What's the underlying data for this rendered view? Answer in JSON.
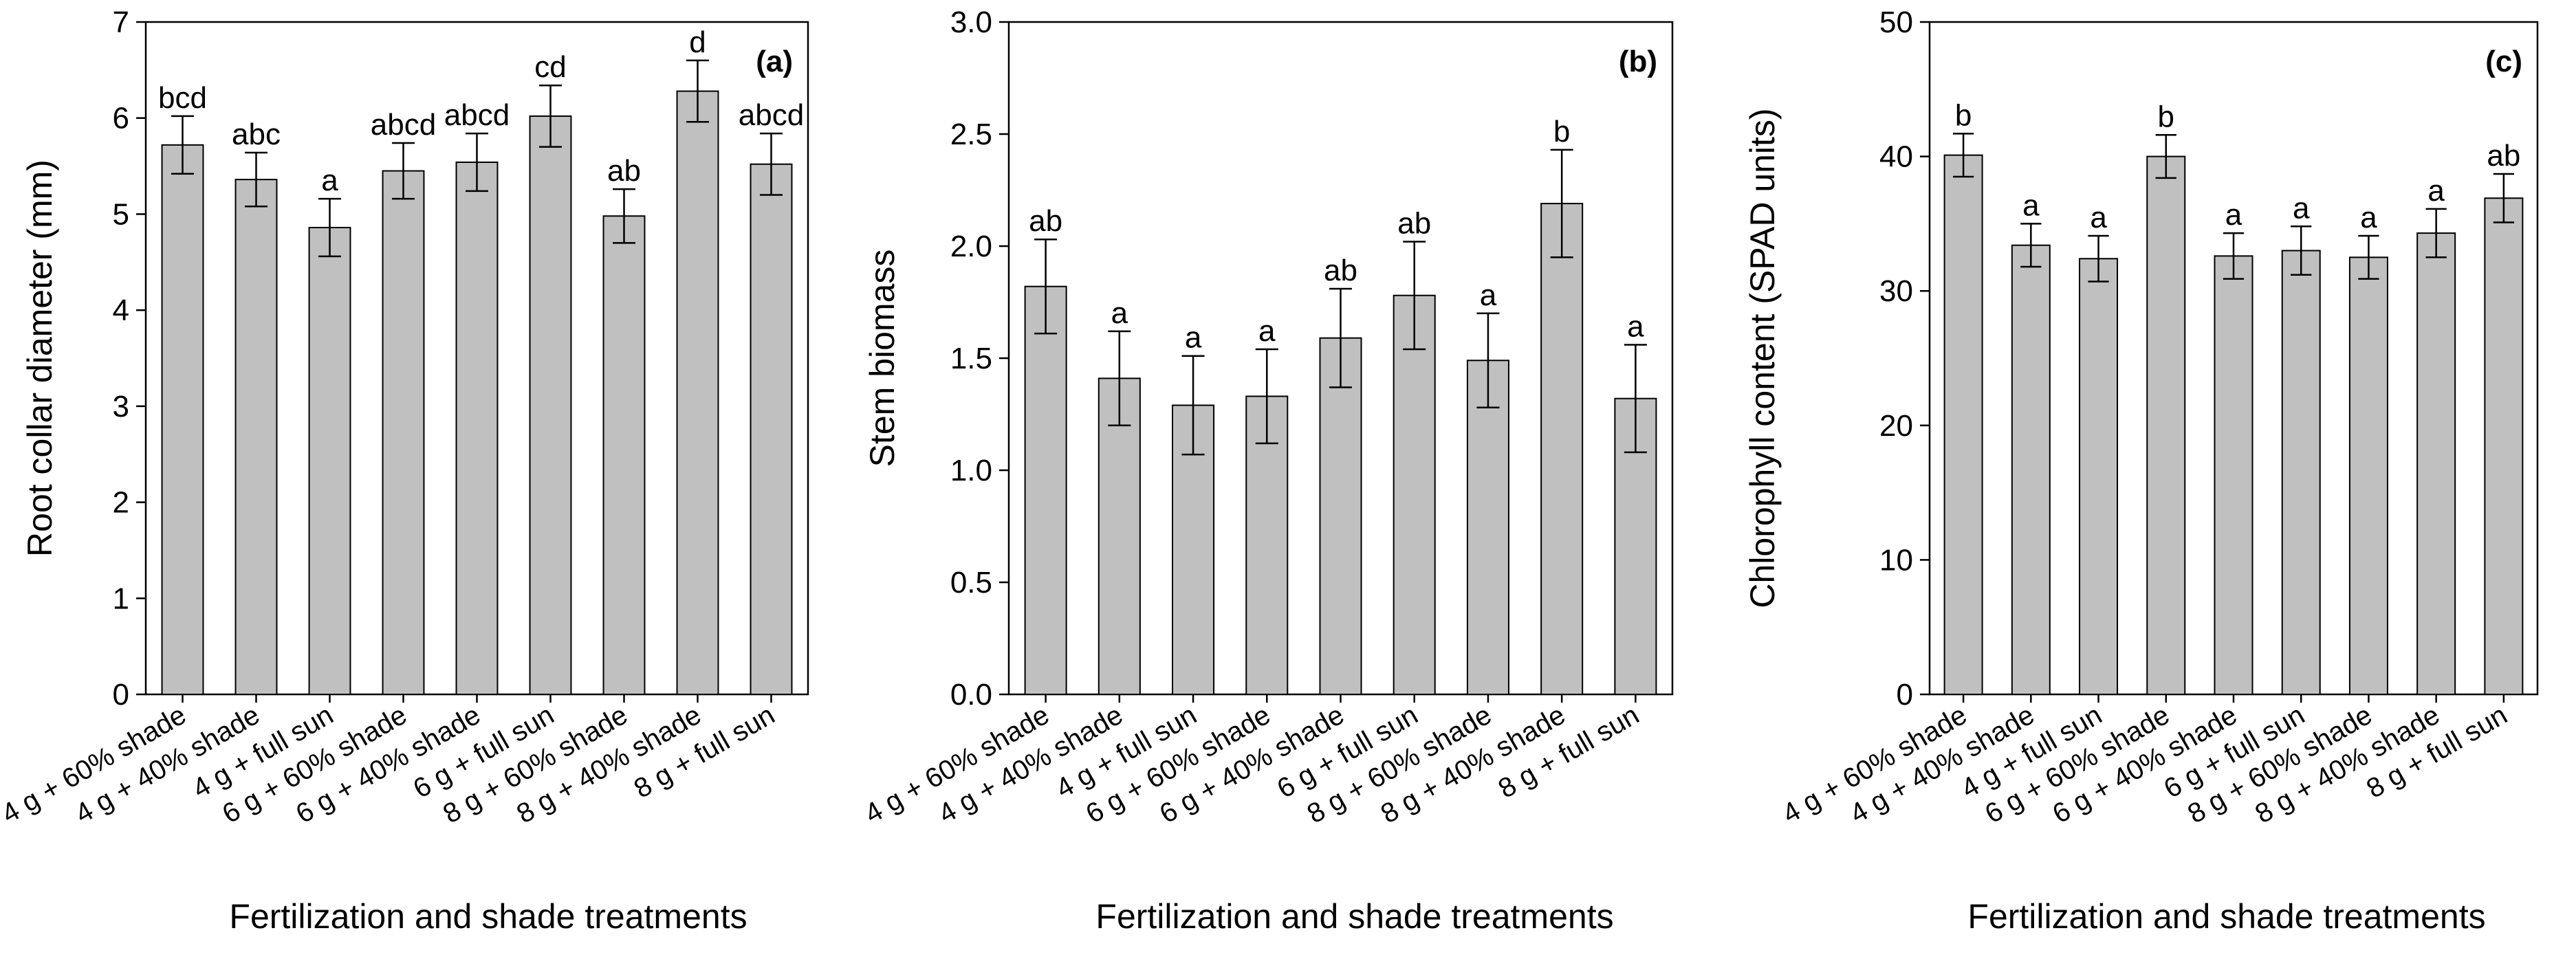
{
  "chart_data": [
    {
      "type": "bar",
      "panel_label": "(a)",
      "title": "",
      "xlabel": "Fertilization and shade treatments",
      "ylabel": "Root collar diameter (mm)",
      "ylim": [
        0,
        7
      ],
      "yticks": [
        "0",
        "1",
        "2",
        "3",
        "4",
        "5",
        "6",
        "7"
      ],
      "categories": [
        "4 g + 60% shade",
        "4 g + 40% shade",
        "4 g + full sun",
        "6 g + 60% shade",
        "6 g + 40% shade",
        "6 g + full sun",
        "8 g + 60% shade",
        "8 g + 40% shade",
        "8 g + full sun"
      ],
      "values": [
        5.72,
        5.36,
        4.86,
        5.45,
        5.54,
        6.02,
        4.98,
        6.28,
        5.52
      ],
      "errors": [
        0.3,
        0.28,
        0.3,
        0.29,
        0.3,
        0.32,
        0.28,
        0.32,
        0.32
      ],
      "letters": [
        "bcd",
        "abc",
        "a",
        "abcd",
        "abcd",
        "cd",
        "ab",
        "d",
        "abcd"
      ]
    },
    {
      "type": "bar",
      "panel_label": "(b)",
      "title": "",
      "xlabel": "Fertilization and shade treatments",
      "ylabel": "Stem biomass",
      "ylim": [
        0,
        3.0
      ],
      "yticks": [
        "0.0",
        "0.5",
        "1.0",
        "1.5",
        "2.0",
        "2.5",
        "3.0"
      ],
      "categories": [
        "4 g + 60% shade",
        "4 g + 40% shade",
        "4 g + full sun",
        "6 g + 60% shade",
        "6 g + 40% shade",
        "6 g + full sun",
        "8 g + 60% shade",
        "8 g + 40% shade",
        "8 g + full sun"
      ],
      "values": [
        1.82,
        1.41,
        1.29,
        1.33,
        1.59,
        1.78,
        1.49,
        2.19,
        1.32
      ],
      "errors": [
        0.21,
        0.21,
        0.22,
        0.21,
        0.22,
        0.24,
        0.21,
        0.24,
        0.24
      ],
      "letters": [
        "ab",
        "a",
        "a",
        "a",
        "ab",
        "ab",
        "a",
        "b",
        "a"
      ]
    },
    {
      "type": "bar",
      "panel_label": "(c)",
      "title": "",
      "xlabel": "Fertilization and shade treatments",
      "ylabel": "Chlorophyll content (SPAD units)",
      "ylim": [
        0,
        50
      ],
      "yticks": [
        "0",
        "10",
        "20",
        "30",
        "40",
        "50"
      ],
      "categories": [
        "4 g + 60% shade",
        "4 g + 40% shade",
        "4 g + full sun",
        "6 g + 60% shade",
        "6 g + 40% shade",
        "6 g + full sun",
        "8 g + 60% shade",
        "8 g + 40% shade",
        "8 g + full sun"
      ],
      "values": [
        40.1,
        33.4,
        32.4,
        40.0,
        32.6,
        33.0,
        32.5,
        34.3,
        36.9
      ],
      "errors": [
        1.6,
        1.6,
        1.7,
        1.6,
        1.7,
        1.8,
        1.6,
        1.8,
        1.8
      ],
      "letters": [
        "b",
        "a",
        "a",
        "b",
        "a",
        "a",
        "a",
        "a",
        "ab"
      ]
    }
  ],
  "colors": {
    "bar_fill": "#c0c0c0",
    "bar_stroke": "#000000",
    "axis": "#000000",
    "background": "#ffffff"
  }
}
